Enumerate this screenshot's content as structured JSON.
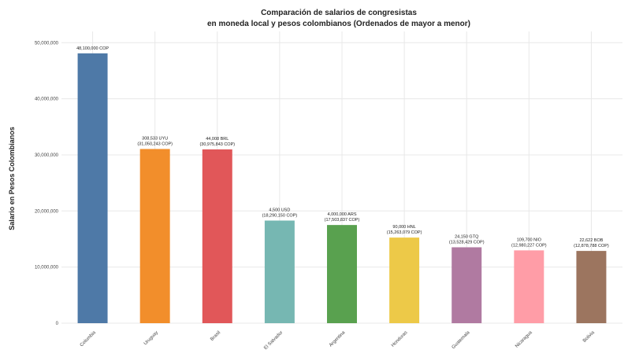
{
  "chart_data": {
    "type": "bar",
    "title": "Comparación de salarios de congresistas",
    "subtitle": "en moneda local y pesos colombianos (Ordenados de mayor a menor)",
    "xlabel": "",
    "ylabel": "Salario en Pesos Colombianos",
    "ylim": [
      0,
      52000000
    ],
    "yticks": [
      0,
      10000000,
      20000000,
      30000000,
      40000000,
      50000000
    ],
    "ytick_labels": [
      "0",
      "10,000,000",
      "20,000,000",
      "30,000,000",
      "40,000,000",
      "50,000,000"
    ],
    "grid": true,
    "categories": [
      "Colombia",
      "Uruguay",
      "Brasil",
      "El Salvador",
      "Argentina",
      "Honduras",
      "Guatemala",
      "Nicaragua",
      "Bolivia"
    ],
    "values": [
      48100000,
      31050000,
      30975000,
      18290000,
      17500000,
      15260000,
      13530000,
      12980000,
      12880000
    ],
    "data_labels": [
      [
        "48,100,000 COP"
      ],
      [
        "308,533 UYU",
        "(31,050,243 COP)"
      ],
      [
        "44,008 BRL",
        "(30,975,843 COP)"
      ],
      [
        "4,500 USD",
        "(18,290,150 COP)"
      ],
      [
        "4,000,000 ARS",
        "(17,503,837 COP)"
      ],
      [
        "90,000 HNL",
        "(15,263,079 COP)"
      ],
      [
        "24,150 GTQ",
        "(13,528,429 COP)"
      ],
      [
        "109,700 NIO",
        "(12,980,227 COP)"
      ],
      [
        "22,622 BOB",
        "(12,878,788 COP)"
      ]
    ],
    "colors": [
      "#4e79a7",
      "#f28e2b",
      "#e15759",
      "#76b7b2",
      "#59a14f",
      "#edc948",
      "#b07aa1",
      "#ff9da7",
      "#9c755f"
    ]
  }
}
